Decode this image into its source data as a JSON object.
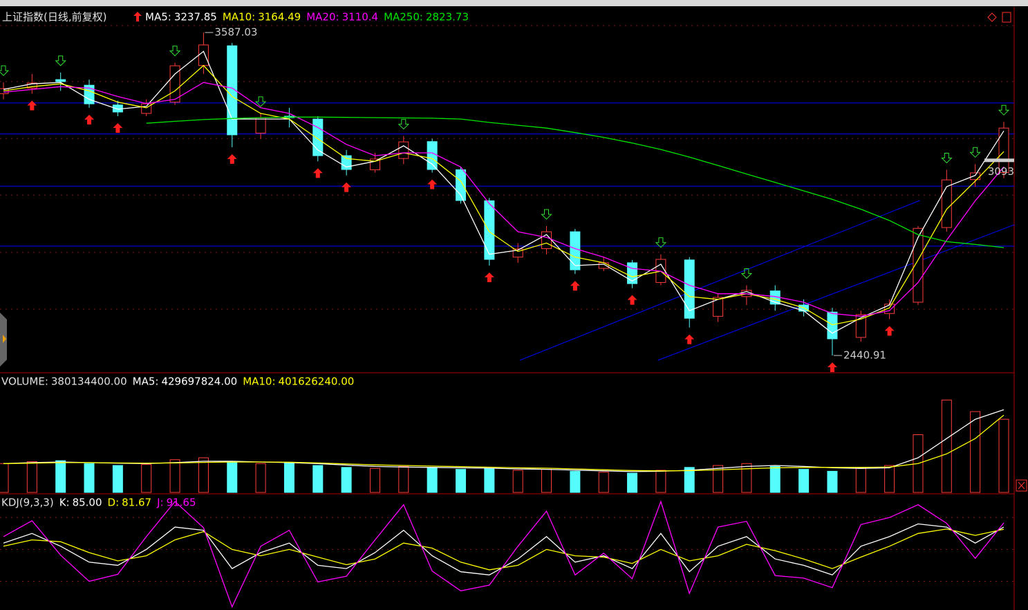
{
  "chart_data": {
    "type": "candlestick",
    "title": "上证指数(日线,前复权)",
    "ylim": [
      2382,
      3673
    ],
    "yticks": [
      2605,
      2807,
      3010,
      3211,
      3413,
      3612
    ],
    "grid": true,
    "up_color": "#ff3c3c",
    "down_color": "#54fcfc",
    "hlines": [
      3337,
      3227,
      3042,
      2829
    ],
    "hline_color": "#0000ff",
    "price_marker": 3093,
    "candles": {
      "open": [
        3370,
        3390,
        3420,
        3400,
        3330,
        3300,
        3340,
        3470,
        3540,
        3230,
        3290,
        3280,
        3150,
        3100,
        3140,
        3200,
        3100,
        2990,
        2790,
        2820,
        2880,
        2750,
        2770,
        2700,
        2780,
        2580,
        2650,
        2670,
        2620,
        2595,
        2505,
        2590,
        2630,
        2895,
        3065,
        3090
      ],
      "high": [
        3410,
        3440,
        3445,
        3420,
        3345,
        3350,
        3480,
        3587.03,
        3550,
        3300,
        3320,
        3290,
        3170,
        3160,
        3220,
        3210,
        3110,
        3000,
        2840,
        2900,
        2890,
        2790,
        2780,
        2800,
        2790,
        2660,
        2690,
        2690,
        2640,
        2610,
        2600,
        2640,
        2900,
        3100,
        3120,
        3270
      ],
      "low": [
        3350,
        3370,
        3380,
        3320,
        3290,
        3290,
        3330,
        3440,
        3180,
        3210,
        3250,
        3130,
        3080,
        3090,
        3120,
        3090,
        2980,
        2760,
        2770,
        2800,
        2730,
        2740,
        2680,
        2690,
        2540,
        2560,
        2620,
        2600,
        2580,
        2440.91,
        2490,
        2570,
        2620,
        2880,
        3040,
        3070
      ],
      "close": [
        3388,
        3408,
        3413,
        3334,
        3305,
        3334,
        3469,
        3543,
        3224,
        3285,
        3285,
        3150,
        3101,
        3138,
        3199,
        3101,
        2991,
        2782,
        2819,
        2880,
        2745,
        2770,
        2696,
        2782,
        2573,
        2647,
        2672,
        2623,
        2598,
        2500,
        2586,
        2623,
        2892,
        3064,
        3089,
        3248
      ]
    },
    "annotations": [
      {
        "index": 7,
        "field": "high"
      },
      {
        "index": 29,
        "field": "low"
      }
    ],
    "series": [
      {
        "name": "MA5:",
        "color": "#ffffff",
        "values": [
          3385,
          3405,
          3410,
          3350,
          3315,
          3325,
          3440,
          3520,
          3280,
          3280,
          3280,
          3170,
          3110,
          3130,
          3185,
          3120,
          3010,
          2800,
          2815,
          2870,
          2760,
          2765,
          2705,
          2765,
          2600,
          2640,
          2668,
          2630,
          2600,
          2520,
          2575,
          2620,
          2860,
          3040,
          3080,
          3237.85
        ]
      },
      {
        "name": "MA10:",
        "color": "#ffff00",
        "values": [
          3380,
          3395,
          3405,
          3380,
          3340,
          3320,
          3380,
          3470,
          3360,
          3300,
          3280,
          3210,
          3140,
          3130,
          3160,
          3140,
          3060,
          2880,
          2810,
          2840,
          2790,
          2770,
          2720,
          2740,
          2650,
          2640,
          2660,
          2640,
          2610,
          2550,
          2570,
          2610,
          2780,
          2960,
          3060,
          3164.49
        ]
      },
      {
        "name": "MA20:",
        "color": "#ff00ff",
        "values": [
          3375,
          3385,
          3395,
          3390,
          3360,
          3335,
          3350,
          3410,
          3390,
          3320,
          3300,
          3250,
          3190,
          3150,
          3160,
          3160,
          3110,
          2980,
          2880,
          2860,
          2820,
          2790,
          2750,
          2740,
          2690,
          2660,
          2660,
          2650,
          2630,
          2590,
          2580,
          2600,
          2700,
          2850,
          2990,
          3110.4
        ]
      },
      {
        "name": "MA250:",
        "color": "#00e600",
        "values": [
          null,
          null,
          null,
          null,
          null,
          3265,
          3272,
          3278,
          3282,
          3285,
          3287,
          3287,
          3286,
          3285,
          3284,
          3283,
          3280,
          3268,
          3258,
          3248,
          3232,
          3215,
          3195,
          3172,
          3145,
          3115,
          3085,
          3055,
          3025,
          2995,
          2960,
          2920,
          2870,
          2845,
          2835,
          2823.73
        ]
      }
    ],
    "buy_signals": [
      1,
      3,
      4,
      8,
      11,
      12,
      15,
      17,
      20,
      22,
      24,
      29,
      31
    ],
    "sell_signals": [
      0,
      2,
      6,
      9,
      14,
      19,
      23,
      26,
      33,
      34,
      35
    ],
    "trendlines": [
      {
        "from": [
          18.07,
          2424
        ],
        "to": [
          32.06,
          2991
        ]
      },
      {
        "from": [
          22.9,
          2424
        ],
        "to": [
          35.37,
          2905
        ]
      }
    ],
    "volume": {
      "ylim": [
        0,
        600000000
      ],
      "series": [
        {
          "name": "VOLUME:",
          "value_label": "380134400.00",
          "values": [
            150000000,
            160000000,
            165000000,
            150000000,
            140000000,
            145000000,
            170000000,
            180000000,
            160000000,
            150000000,
            155000000,
            140000000,
            130000000,
            125000000,
            135000000,
            130000000,
            120000000,
            125000000,
            115000000,
            120000000,
            110000000,
            105000000,
            100000000,
            115000000,
            130000000,
            140000000,
            150000000,
            135000000,
            120000000,
            110000000,
            125000000,
            140000000,
            300000000,
            480000000,
            420000000,
            380134400
          ]
        },
        {
          "name": "MA5:",
          "color": "#ffffff",
          "value_label": "429697824.00",
          "values": [
            150000000,
            155000000,
            158000000,
            155000000,
            152000000,
            150000000,
            155000000,
            162000000,
            162000000,
            158000000,
            155000000,
            150000000,
            142000000,
            135000000,
            132000000,
            130000000,
            128000000,
            126000000,
            122000000,
            120000000,
            116000000,
            112000000,
            108000000,
            110000000,
            115000000,
            125000000,
            135000000,
            140000000,
            135000000,
            128000000,
            125000000,
            128000000,
            180000000,
            280000000,
            380000000,
            429697824
          ]
        },
        {
          "name": "MA10:",
          "color": "#ffff00",
          "value_label": "401626240.00",
          "values": [
            150000000,
            152000000,
            155000000,
            155000000,
            153000000,
            152000000,
            153000000,
            156000000,
            158000000,
            158000000,
            157000000,
            153000000,
            148000000,
            143000000,
            140000000,
            137000000,
            134000000,
            131000000,
            128000000,
            126000000,
            122000000,
            118000000,
            114000000,
            112000000,
            113000000,
            117000000,
            123000000,
            128000000,
            130000000,
            130000000,
            130000000,
            132000000,
            150000000,
            200000000,
            280000000,
            401626240
          ]
        }
      ]
    },
    "kdj": {
      "title": "KDJ(9,3,3)",
      "ylim": [
        -45,
        135
      ],
      "yticks": [
        0,
        50,
        100
      ],
      "series": [
        {
          "name": "K:",
          "color": "#ffffff",
          "value_label": "85.00",
          "values": [
            60,
            75,
            55,
            30,
            25,
            50,
            85,
            80,
            20,
            45,
            60,
            25,
            20,
            45,
            80,
            40,
            15,
            10,
            35,
            70,
            30,
            40,
            20,
            75,
            15,
            55,
            70,
            35,
            25,
            10,
            55,
            70,
            90,
            85,
            60,
            85
          ]
        },
        {
          "name": "D:",
          "color": "#ffff00",
          "value_label": "81.67",
          "values": [
            55,
            65,
            62,
            45,
            32,
            40,
            65,
            78,
            50,
            40,
            50,
            38,
            26,
            35,
            60,
            52,
            30,
            18,
            25,
            50,
            40,
            38,
            28,
            50,
            32,
            40,
            58,
            48,
            35,
            20,
            38,
            55,
            75,
            82,
            72,
            81.67
          ]
        },
        {
          "name": "J:",
          "color": "#ff00ff",
          "value_label": "91.65",
          "values": [
            70,
            95,
            41,
            0,
            11,
            70,
            125,
            84,
            -40,
            55,
            80,
            -1,
            8,
            65,
            120,
            16,
            -15,
            -6,
            55,
            110,
            10,
            44,
            4,
            125,
            -19,
            85,
            94,
            9,
            5,
            -10,
            89,
            100,
            120,
            91,
            36,
            91.65
          ]
        }
      ]
    }
  }
}
